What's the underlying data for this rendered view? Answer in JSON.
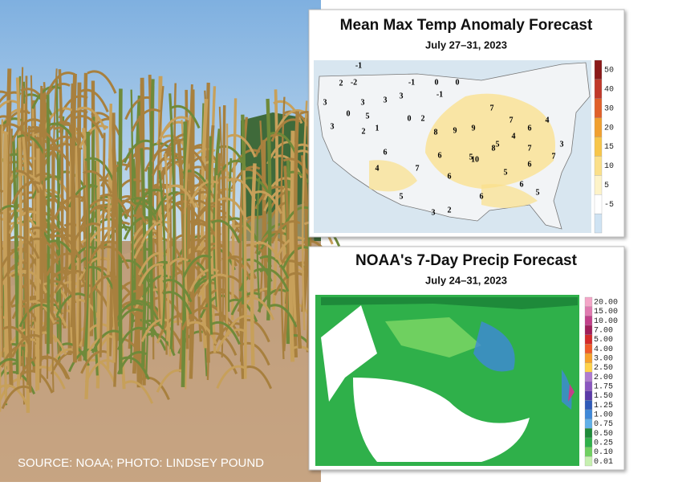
{
  "source": "SOURCE: NOAA; PHOTO: LINDSEY POUND",
  "panels": [
    {
      "title": "Mean Max Temp Anomaly Forecast",
      "date": "July 27–31, 2023",
      "colorbar": [
        {
          "label": "50",
          "color": "#8b1a1a"
        },
        {
          "label": "40",
          "color": "#c0392b"
        },
        {
          "label": "30",
          "color": "#e0602a"
        },
        {
          "label": "20",
          "color": "#f0a030"
        },
        {
          "label": "15",
          "color": "#f7c64a"
        },
        {
          "label": "10",
          "color": "#fbe08a"
        },
        {
          "label": "5",
          "color": "#fdf3c8"
        },
        {
          "label": "-5",
          "color": "#ffffff"
        },
        {
          "color": "#cfe3f3"
        }
      ],
      "map_labels": [
        -1,
        2,
        -2,
        -1,
        0,
        0,
        -1,
        3,
        3,
        3,
        3,
        0,
        5,
        0,
        2,
        3,
        2,
        1,
        8,
        9,
        9,
        7,
        7,
        6,
        5,
        10,
        5,
        4,
        6,
        4,
        3,
        7,
        6,
        5,
        6,
        5,
        6,
        7,
        4,
        5,
        3,
        2,
        6,
        8,
        7,
        6
      ]
    },
    {
      "title": "NOAA's 7-Day Precip Forecast",
      "date": "July 24–31, 2023",
      "colorbar": [
        {
          "label": "20.00",
          "color": "#f4a6c8"
        },
        {
          "label": "15.00",
          "color": "#e07ab0"
        },
        {
          "label": "10.00",
          "color": "#c2408a"
        },
        {
          "label": "7.00",
          "color": "#a01e5a"
        },
        {
          "label": "5.00",
          "color": "#d42a2a"
        },
        {
          "label": "4.00",
          "color": "#f05a28"
        },
        {
          "label": "3.00",
          "color": "#f7a12b"
        },
        {
          "label": "2.50",
          "color": "#ffd24a"
        },
        {
          "label": "2.00",
          "color": "#b07ad0"
        },
        {
          "label": "1.75",
          "color": "#8a56c0"
        },
        {
          "label": "1.50",
          "color": "#5a3aa8"
        },
        {
          "label": "1.25",
          "color": "#2f5ab8"
        },
        {
          "label": "1.00",
          "color": "#3f88d8"
        },
        {
          "label": "0.75",
          "color": "#60b0e8"
        },
        {
          "label": "0.50",
          "color": "#1e8a3a"
        },
        {
          "label": "0.25",
          "color": "#2fb04a"
        },
        {
          "label": "0.10",
          "color": "#6fd060"
        },
        {
          "label": "0.01",
          "color": "#c6f0b0"
        }
      ]
    }
  ]
}
